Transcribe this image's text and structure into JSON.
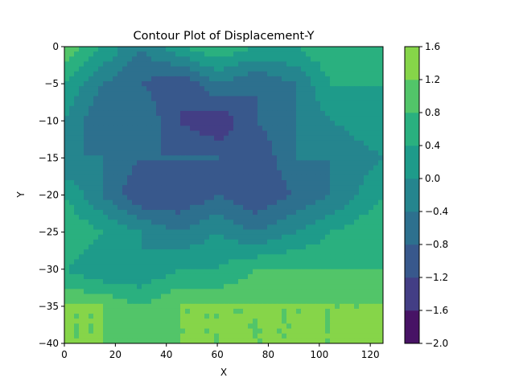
{
  "chart_data": {
    "type": "heatmap",
    "subtype": "filled-contour",
    "title": "Contour Plot of Displacement-Y",
    "xlabel": "X",
    "ylabel": "Y",
    "xlim": [
      0,
      125
    ],
    "ylim": [
      -40,
      0
    ],
    "x_ticks": [
      0,
      20,
      40,
      60,
      80,
      100,
      120
    ],
    "y_ticks": [
      0,
      -5,
      -10,
      -15,
      -20,
      -25,
      -30,
      -35,
      -40
    ],
    "colorbar": {
      "levels": [
        -2.0,
        -1.6,
        -1.2,
        -0.8,
        -0.4,
        0.0,
        0.4,
        0.8,
        1.2,
        1.6
      ],
      "tick_labels": [
        "−2.0",
        "−1.6",
        "−1.2",
        "−0.8",
        "−0.4",
        "0.0",
        "0.4",
        "0.8",
        "1.2",
        "1.6"
      ],
      "colors": [
        "#471365",
        "#433e85",
        "#38588c",
        "#2d708e",
        "#25858e",
        "#1e9b8a",
        "#2ab07f",
        "#52c569",
        "#86d549",
        "#c2df23"
      ]
    },
    "field": {
      "description_rows_y": [
        0,
        -5,
        -10,
        -15,
        -20,
        -25,
        -30,
        -35,
        -40
      ],
      "columns_x": [
        0,
        15,
        30,
        45,
        60,
        75,
        90,
        105,
        125
      ],
      "values": [
        [
          1.2,
          0.4,
          -0.4,
          0.4,
          0.8,
          0.4,
          0.4,
          0.8,
          0.8
        ],
        [
          0.4,
          -0.4,
          -0.8,
          -1.2,
          -0.4,
          -0.8,
          -0.4,
          0.4,
          0.4
        ],
        [
          0.0,
          -0.8,
          -0.4,
          -1.2,
          -1.6,
          -0.8,
          -0.4,
          0.0,
          0.4
        ],
        [
          -0.4,
          -0.4,
          -0.8,
          -0.8,
          -0.8,
          -1.2,
          -0.4,
          -0.4,
          0.0
        ],
        [
          0.4,
          -0.4,
          -1.2,
          -1.2,
          -0.8,
          -1.2,
          -0.8,
          -0.4,
          0.4
        ],
        [
          0.8,
          0.4,
          0.0,
          -0.4,
          0.0,
          -0.4,
          0.0,
          0.4,
          0.8
        ],
        [
          0.4,
          0.0,
          0.0,
          0.4,
          0.4,
          0.8,
          0.8,
          0.8,
          0.8
        ],
        [
          1.2,
          1.2,
          0.8,
          1.2,
          1.2,
          1.2,
          1.2,
          1.2,
          1.2
        ],
        [
          1.2,
          1.2,
          1.2,
          1.2,
          1.2,
          1.2,
          1.2,
          1.2,
          1.6
        ]
      ]
    }
  }
}
